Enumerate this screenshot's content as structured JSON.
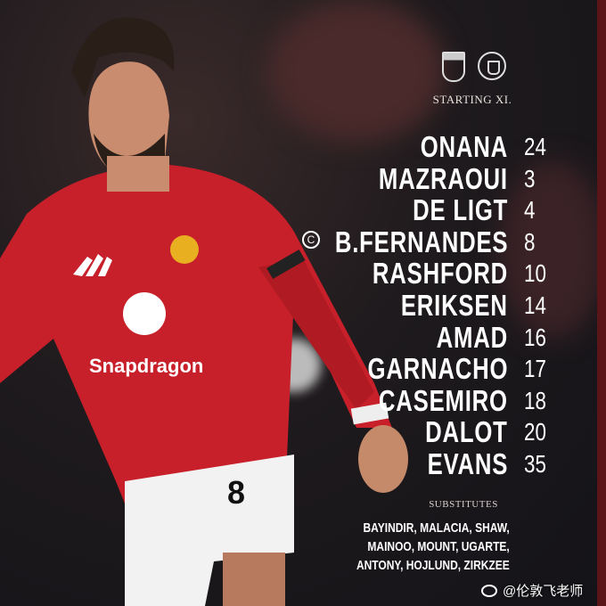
{
  "header": {
    "crests": [
      "ipswich-town-crest",
      "manchester-united-crest"
    ],
    "title": "STARTING XI."
  },
  "lineup": [
    {
      "name": "ONANA",
      "number": "24"
    },
    {
      "name": "MAZRAOUI",
      "number": "3"
    },
    {
      "name": "DE LIGT",
      "number": "4"
    },
    {
      "name": "B.FERNANDES",
      "number": "8"
    },
    {
      "name": "RASHFORD",
      "number": "10"
    },
    {
      "name": "ERIKSEN",
      "number": "14"
    },
    {
      "name": "AMAD",
      "number": "16"
    },
    {
      "name": "GARNACHO",
      "number": "17"
    },
    {
      "name": "CASEMIRO",
      "number": "18"
    },
    {
      "name": "DALOT",
      "number": "20"
    },
    {
      "name": "EVANS",
      "number": "35"
    }
  ],
  "captain_mark": "C",
  "substitutes": {
    "title": "SUBSTITUTES",
    "lines": [
      "BAYINDIR, MALACIA, SHAW,",
      "MAINOO, MOUNT, UGARTE,",
      "ANTONY, HOJLUND, ZIRKZEE"
    ]
  },
  "player": {
    "sponsor": "Snapdragon",
    "shorts_number": "8"
  },
  "watermark": "@伦敦飞老师",
  "colors": {
    "kit_red": "#c8202a",
    "background": "#1a181c",
    "text": "#ffffff"
  }
}
